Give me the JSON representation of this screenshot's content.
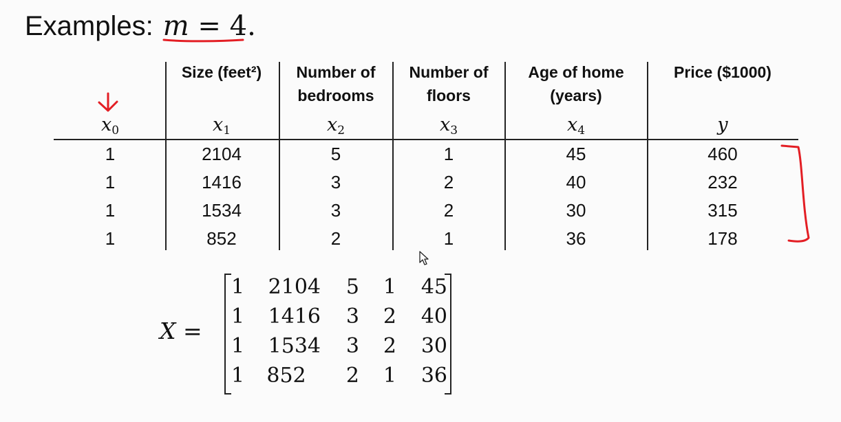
{
  "title": {
    "label": "Examples:",
    "math_var": "m",
    "math_rest": " = 4."
  },
  "table": {
    "columns": [
      {
        "header": "",
        "var": "x",
        "sub": "0"
      },
      {
        "header": "Size (feet²)",
        "var": "x",
        "sub": "1"
      },
      {
        "header": "Number of\nbedrooms",
        "var": "x",
        "sub": "2"
      },
      {
        "header": "Number of\nfloors",
        "var": "x",
        "sub": "3"
      },
      {
        "header": "Age of home\n(years)",
        "var": "x",
        "sub": "4"
      },
      {
        "header": "Price ($1000)",
        "var": "y",
        "sub": ""
      }
    ],
    "rows": [
      [
        "1",
        "2104",
        "5",
        "1",
        "45",
        "460"
      ],
      [
        "1",
        "1416",
        "3",
        "2",
        "40",
        "232"
      ],
      [
        "1",
        "1534",
        "3",
        "2",
        "30",
        "315"
      ],
      [
        "1",
        "852",
        "2",
        "1",
        "36",
        "178"
      ]
    ]
  },
  "matrix": {
    "name": "X",
    "equals": " =",
    "rows": [
      [
        "1",
        "2104",
        "5",
        "1",
        "45"
      ],
      [
        "1",
        "1416",
        "3",
        "2",
        "40"
      ],
      [
        "1",
        "1534",
        "3",
        "2",
        "30"
      ],
      [
        "1",
        "852",
        "2",
        "1",
        "36"
      ]
    ]
  },
  "annotation_color": "#e31e24",
  "icons": {
    "cursor": "mouse-pointer-icon",
    "arrow": "red-down-arrow-icon",
    "bracket": "red-bracket-icon"
  }
}
